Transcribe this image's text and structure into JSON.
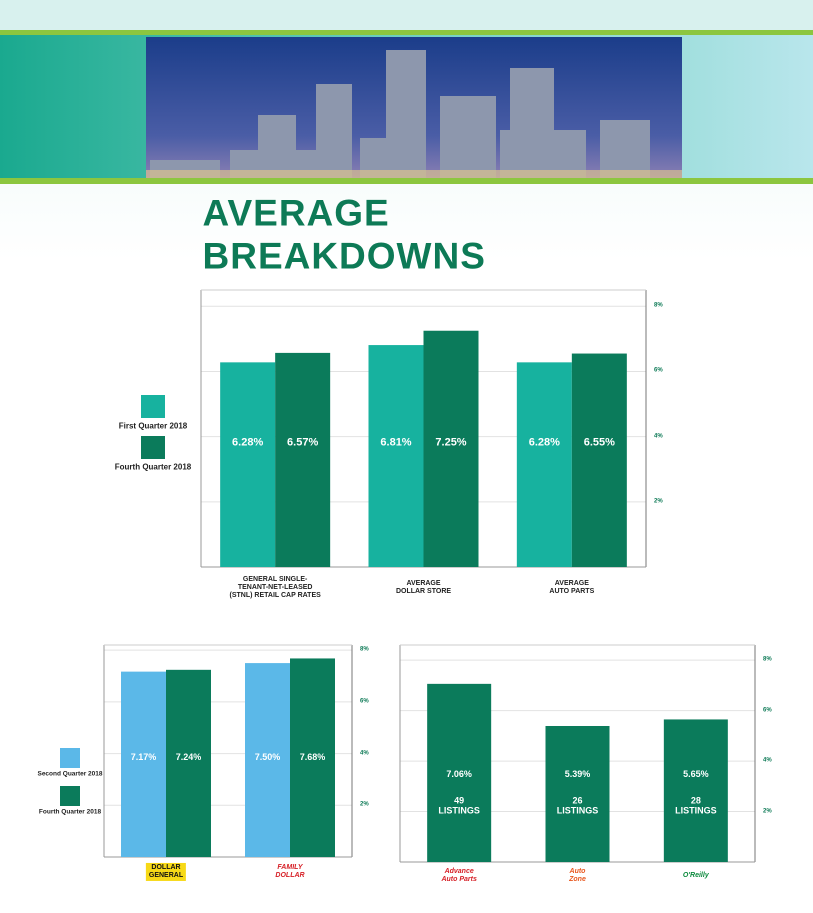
{
  "title": "AVERAGE BREAKDOWNS",
  "chart_data": [
    {
      "type": "bar",
      "categories": [
        "GENERAL SINGLE-\nTENANT-NET-LEASED\n(STNL) RETAIL CAP RATES",
        "AVERAGE\nDOLLAR STORE",
        "AVERAGE\nAUTO PARTS"
      ],
      "series": [
        {
          "name": "First Quarter 2018",
          "color": "#17b29f",
          "values": [
            6.28,
            6.81,
            6.28
          ],
          "value_labels": [
            "6.28%",
            "6.81%",
            "6.28%"
          ]
        },
        {
          "name": "Fourth Quarter 2018",
          "color": "#0b7b5b",
          "values": [
            6.57,
            7.25,
            6.55
          ],
          "value_labels": [
            "6.57%",
            "7.25%",
            "6.55%"
          ]
        }
      ],
      "ylim": [
        0,
        8.5
      ],
      "yticks": [
        {
          "value": 2,
          "label": "2%"
        },
        {
          "value": 4,
          "label": "4%"
        },
        {
          "value": 6,
          "label": "6%"
        },
        {
          "value": 8,
          "label": "8%"
        }
      ],
      "grid": true
    },
    {
      "type": "bar",
      "categories": [
        "DOLLAR\nGENERAL",
        "FAMILY\nDOLLAR"
      ],
      "series": [
        {
          "name": "Second Quarter 2018",
          "color": "#5bb8e8",
          "values": [
            7.17,
            7.5
          ],
          "value_labels": [
            "7.17%",
            "7.50%"
          ]
        },
        {
          "name": "Fourth Quarter 2018",
          "color": "#0b7b5b",
          "values": [
            7.24,
            7.68
          ],
          "value_labels": [
            "7.24%",
            "7.68%"
          ]
        }
      ],
      "ylim": [
        0,
        8.2
      ],
      "yticks": [
        {
          "value": 2,
          "label": "2%"
        },
        {
          "value": 4,
          "label": "4%"
        },
        {
          "value": 6,
          "label": "6%"
        },
        {
          "value": 8,
          "label": "8%"
        }
      ],
      "grid": true
    },
    {
      "type": "bar",
      "categories": [
        "Advance\nAuto Parts",
        "Auto\nZone",
        "O'Reilly"
      ],
      "series": [
        {
          "color": "#0b7b5b",
          "values": [
            7.06,
            5.39,
            5.65
          ],
          "value_labels": [
            "7.06%",
            "5.39%",
            "5.65%"
          ],
          "annotations": [
            "49\nLISTINGS",
            "26\nLISTINGS",
            "28\nLISTINGS"
          ]
        }
      ],
      "ylim": [
        0,
        8.6
      ],
      "yticks": [
        {
          "value": 2,
          "label": "2%"
        },
        {
          "value": 4,
          "label": "4%"
        },
        {
          "value": 6,
          "label": "6%"
        },
        {
          "value": 8,
          "label": "8%"
        }
      ],
      "grid": true
    }
  ]
}
